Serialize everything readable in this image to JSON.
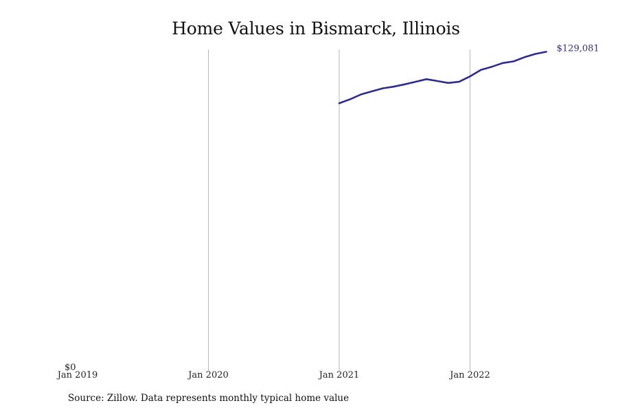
{
  "title": "Home Values in Bismarck, Illinois",
  "source": "Source: Zillow. Data represents monthly typical home value",
  "colors": {
    "line": "#2e2a8f",
    "grid": "#b5b5b5",
    "text": "#111111"
  },
  "chart_data": {
    "type": "line",
    "title": "Home Values in Bismarck, Illinois",
    "xlabel": "",
    "ylabel": "",
    "x_ticks": [
      "Jan 2019",
      "Jan 2020",
      "Jan 2021",
      "Jan 2022"
    ],
    "y_ticks": [
      "$0"
    ],
    "xlim": [
      "2019-01",
      "2022-10"
    ],
    "ylim": [
      0,
      129081
    ],
    "grid": "vertical",
    "legend": "none",
    "end_label": "$129,081",
    "series": [
      {
        "x": [
          "2021-01",
          "2021-02",
          "2021-03",
          "2021-04",
          "2021-05",
          "2021-06",
          "2021-07",
          "2021-08",
          "2021-09",
          "2021-10",
          "2021-11",
          "2021-12",
          "2022-01",
          "2022-02",
          "2022-03",
          "2022-04",
          "2022-05",
          "2022-06",
          "2022-07",
          "2022-08"
        ],
        "values": [
          112500,
          114200,
          116300,
          117600,
          118900,
          119600,
          120600,
          121700,
          122800,
          122000,
          121200,
          121700,
          124000,
          126800,
          128100,
          129700,
          130400,
          132200,
          133600,
          134500
        ]
      }
    ]
  }
}
